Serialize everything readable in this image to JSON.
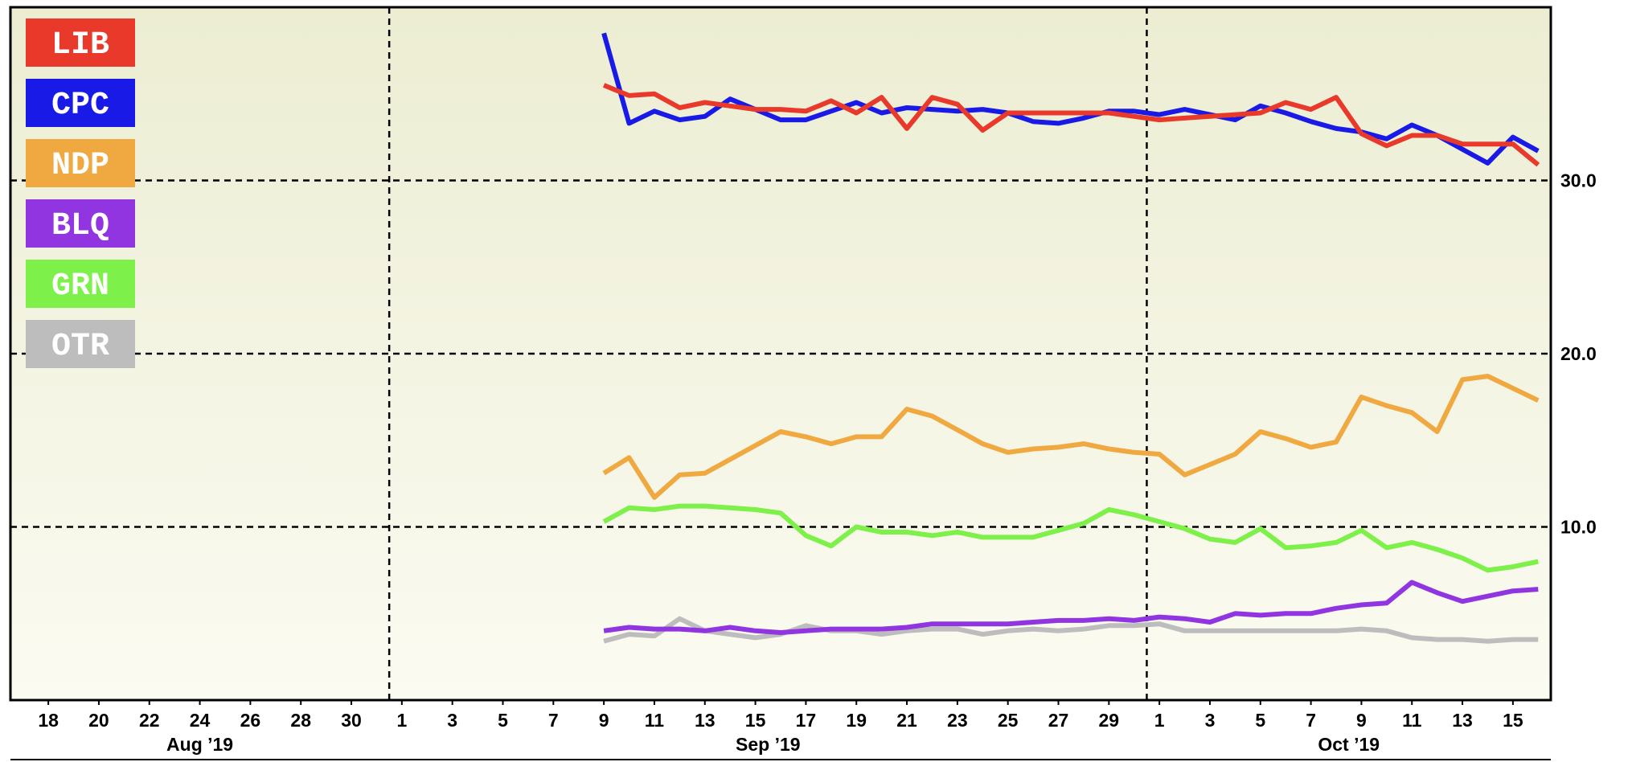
{
  "chart_data": {
    "type": "line",
    "x": [
      "2019-09-09",
      "2019-09-10",
      "2019-09-11",
      "2019-09-12",
      "2019-09-13",
      "2019-09-14",
      "2019-09-15",
      "2019-09-16",
      "2019-09-17",
      "2019-09-18",
      "2019-09-19",
      "2019-09-20",
      "2019-09-21",
      "2019-09-22",
      "2019-09-23",
      "2019-09-24",
      "2019-09-25",
      "2019-09-26",
      "2019-09-27",
      "2019-09-28",
      "2019-09-29",
      "2019-09-30",
      "2019-10-01",
      "2019-10-02",
      "2019-10-03",
      "2019-10-04",
      "2019-10-05",
      "2019-10-06",
      "2019-10-07",
      "2019-10-08",
      "2019-10-09",
      "2019-10-10",
      "2019-10-11",
      "2019-10-12",
      "2019-10-13",
      "2019-10-14",
      "2019-10-15",
      "2019-10-16"
    ],
    "series": [
      {
        "name": "LIB",
        "color": "#e8392b",
        "values": [
          35.5,
          34.9,
          35.0,
          34.2,
          34.5,
          34.3,
          34.1,
          34.1,
          34.0,
          34.6,
          33.9,
          34.8,
          33.0,
          34.8,
          34.4,
          32.9,
          33.9,
          33.9,
          33.9,
          33.9,
          33.9,
          33.7,
          33.5,
          33.6,
          33.7,
          33.8,
          33.9,
          34.5,
          34.1,
          34.8,
          32.7,
          32.0,
          32.6,
          32.6,
          32.1,
          32.1,
          32.1,
          30.9
        ]
      },
      {
        "name": "CPC",
        "color": "#1a1ae6",
        "values": [
          38.5,
          33.3,
          34.0,
          33.5,
          33.7,
          34.7,
          34.1,
          33.5,
          33.5,
          34.0,
          34.5,
          33.9,
          34.2,
          34.1,
          34.0,
          34.1,
          33.9,
          33.4,
          33.3,
          33.6,
          34.0,
          34.0,
          33.8,
          34.1,
          33.8,
          33.5,
          34.3,
          33.9,
          33.4,
          33.0,
          32.8,
          32.4,
          33.2,
          32.6,
          31.8,
          31.0,
          32.5,
          31.7
        ]
      },
      {
        "name": "NDP",
        "color": "#f0a840",
        "values": [
          13.1,
          14.0,
          11.7,
          13.0,
          13.1,
          13.9,
          14.7,
          15.5,
          15.2,
          14.8,
          15.2,
          15.2,
          16.8,
          16.4,
          15.6,
          14.8,
          14.3,
          14.5,
          14.6,
          14.8,
          14.5,
          14.3,
          14.2,
          13.0,
          13.6,
          14.2,
          15.5,
          15.1,
          14.6,
          14.9,
          17.5,
          17.0,
          16.6,
          15.5,
          18.5,
          18.7,
          18.0,
          17.3
        ]
      },
      {
        "name": "BLQ",
        "color": "#9035e0",
        "values": [
          4.0,
          4.2,
          4.1,
          4.1,
          4.0,
          4.2,
          4.0,
          3.9,
          4.0,
          4.1,
          4.1,
          4.1,
          4.2,
          4.4,
          4.4,
          4.4,
          4.4,
          4.5,
          4.6,
          4.6,
          4.7,
          4.6,
          4.8,
          4.7,
          4.5,
          5.0,
          4.9,
          5.0,
          5.0,
          5.3,
          5.5,
          5.6,
          6.8,
          6.2,
          5.7,
          6.0,
          6.3,
          6.4
        ]
      },
      {
        "name": "GRN",
        "color": "#7ef04a",
        "values": [
          10.3,
          11.1,
          11.0,
          11.2,
          11.2,
          11.1,
          11.0,
          10.8,
          9.5,
          8.9,
          10.0,
          9.7,
          9.7,
          9.5,
          9.7,
          9.4,
          9.4,
          9.4,
          9.8,
          10.2,
          11.0,
          10.7,
          10.3,
          9.9,
          9.3,
          9.1,
          9.9,
          8.8,
          8.9,
          9.1,
          9.8,
          8.8,
          9.1,
          8.7,
          8.2,
          7.5,
          7.7,
          8.0
        ]
      },
      {
        "name": "OTR",
        "color": "#bdbdbd",
        "values": [
          3.4,
          3.8,
          3.7,
          4.7,
          4.0,
          3.8,
          3.6,
          3.8,
          4.3,
          4.0,
          4.0,
          3.8,
          4.0,
          4.1,
          4.1,
          3.8,
          4.0,
          4.1,
          4.0,
          4.1,
          4.3,
          4.3,
          4.4,
          4.0,
          4.0,
          4.0,
          4.0,
          4.0,
          4.0,
          4.0,
          4.1,
          4.0,
          3.6,
          3.5,
          3.5,
          3.4,
          3.5,
          3.5
        ]
      }
    ],
    "xlim": [
      "2019-08-16T12:00:00Z",
      "2019-10-16T12:00:00Z"
    ],
    "xticks": [
      {
        "value": "2019-08-18",
        "label": "18"
      },
      {
        "value": "2019-08-20",
        "label": "20"
      },
      {
        "value": "2019-08-22",
        "label": "22"
      },
      {
        "value": "2019-08-24",
        "label": "24"
      },
      {
        "value": "2019-08-26",
        "label": "26"
      },
      {
        "value": "2019-08-28",
        "label": "28"
      },
      {
        "value": "2019-08-30",
        "label": "30"
      },
      {
        "value": "2019-09-01",
        "label": "1"
      },
      {
        "value": "2019-09-03",
        "label": "3"
      },
      {
        "value": "2019-09-05",
        "label": "5"
      },
      {
        "value": "2019-09-07",
        "label": "7"
      },
      {
        "value": "2019-09-09",
        "label": "9"
      },
      {
        "value": "2019-09-11",
        "label": "11"
      },
      {
        "value": "2019-09-13",
        "label": "13"
      },
      {
        "value": "2019-09-15",
        "label": "15"
      },
      {
        "value": "2019-09-17",
        "label": "17"
      },
      {
        "value": "2019-09-19",
        "label": "19"
      },
      {
        "value": "2019-09-21",
        "label": "21"
      },
      {
        "value": "2019-09-23",
        "label": "23"
      },
      {
        "value": "2019-09-25",
        "label": "25"
      },
      {
        "value": "2019-09-27",
        "label": "27"
      },
      {
        "value": "2019-09-29",
        "label": "29"
      },
      {
        "value": "2019-10-01",
        "label": "1"
      },
      {
        "value": "2019-10-03",
        "label": "3"
      },
      {
        "value": "2019-10-05",
        "label": "5"
      },
      {
        "value": "2019-10-07",
        "label": "7"
      },
      {
        "value": "2019-10-09",
        "label": "9"
      },
      {
        "value": "2019-10-11",
        "label": "11"
      },
      {
        "value": "2019-10-13",
        "label": "13"
      },
      {
        "value": "2019-10-15",
        "label": "15"
      }
    ],
    "months": [
      {
        "value": "2019-08",
        "label": "Aug ’19"
      },
      {
        "value": "2019-09",
        "label": "Sep ’19"
      },
      {
        "value": "2019-10",
        "label": "Oct ’19"
      }
    ],
    "ylim": [
      0,
      40
    ],
    "yticks": [
      {
        "value": 10,
        "label": "10.0"
      },
      {
        "value": 20,
        "label": "20.0"
      },
      {
        "value": 30,
        "label": "30.0"
      }
    ],
    "grid": true,
    "legend": "upper left"
  }
}
